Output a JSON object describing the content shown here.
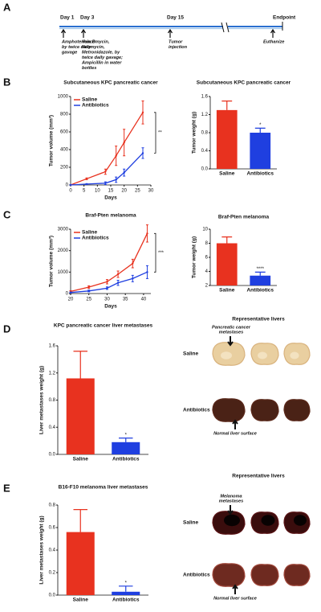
{
  "panel_labels": [
    "A",
    "B",
    "C",
    "D",
    "E"
  ],
  "timeline": {
    "events": [
      {
        "label": "Day 1",
        "note": [
          "Amphotericin B",
          "by twice daily",
          "gavage"
        ]
      },
      {
        "label": "Day 3",
        "note": [
          "Vancomycin,",
          "Neomycin,",
          "Metronidazole, by",
          "twice daily gavage;",
          "Ampicillin in water",
          "bottles"
        ]
      },
      {
        "label": "Day 15",
        "note": [
          "Tumor",
          "injection"
        ]
      },
      {
        "label": "Endpoint",
        "note": [
          "Euthanize"
        ]
      }
    ]
  },
  "chart_data": [
    {
      "type": "line",
      "title": "Subcutaneous KPC pancreatic cancer",
      "x_label": "Days",
      "y_label": "Tumor volume (mm³)",
      "x": [
        0,
        6,
        13,
        17,
        20,
        27
      ],
      "xlim": [
        0,
        30
      ],
      "xticks": [
        0,
        5,
        10,
        15,
        20,
        25,
        30
      ],
      "ylim": [
        0,
        1000
      ],
      "yticks": [
        0,
        200,
        400,
        600,
        800,
        1000
      ],
      "significance": "**",
      "series": [
        {
          "name": "Saline",
          "color": "#e8321f",
          "values": [
            0,
            70,
            150,
            330,
            480,
            820
          ],
          "errors": [
            0,
            10,
            30,
            110,
            150,
            130
          ]
        },
        {
          "name": "Antibiotics",
          "color": "#1f3fe0",
          "values": [
            0,
            10,
            20,
            60,
            140,
            360
          ],
          "errors": [
            0,
            5,
            15,
            30,
            40,
            60
          ]
        }
      ]
    },
    {
      "type": "bar",
      "title": "Subcutaneous KPC pancreatic cancer",
      "y_label": "Tumor weight (g)",
      "categories": [
        "Saline",
        "Antibiotics"
      ],
      "values": [
        1.3,
        0.8
      ],
      "errors": [
        0.2,
        0.1
      ],
      "colors": [
        "#e8321f",
        "#1f3fe0"
      ],
      "ylim": [
        0,
        1.6
      ],
      "yticks": [
        {
          "value": 0,
          "label": "0.0"
        },
        0.4,
        0.8,
        1.2,
        1.6
      ],
      "significance": "*"
    },
    {
      "type": "line",
      "title": "Braf-Pten melanoma",
      "x_label": "Days",
      "y_label": "Tumor volume (mm³)",
      "x": [
        20,
        25,
        30,
        33,
        37,
        41
      ],
      "xlim": [
        20,
        42
      ],
      "xticks": [
        20,
        25,
        30,
        35,
        40
      ],
      "ylim": [
        0,
        3000
      ],
      "yticks": [
        0,
        1000,
        2000,
        3000
      ],
      "significance": "***",
      "series": [
        {
          "name": "Saline",
          "color": "#e8321f",
          "values": [
            100,
            300,
            550,
            900,
            1400,
            2800
          ],
          "errors": [
            30,
            60,
            100,
            150,
            200,
            400
          ]
        },
        {
          "name": "Antibiotics",
          "color": "#1f3fe0",
          "values": [
            50,
            120,
            250,
            500,
            700,
            1000
          ],
          "errors": [
            20,
            40,
            60,
            120,
            150,
            300
          ]
        }
      ]
    },
    {
      "type": "bar",
      "title": "Braf-Pten melanoma",
      "y_label": "Tumor weight (g)",
      "categories": [
        "Saline",
        "Antibiotics"
      ],
      "values": [
        8.0,
        3.4
      ],
      "errors": [
        0.9,
        0.5
      ],
      "colors": [
        "#e8321f",
        "#1f3fe0"
      ],
      "ylim": [
        2,
        10
      ],
      "yticks": [
        2,
        4,
        6,
        8,
        10
      ],
      "significance": "****"
    },
    {
      "type": "bar",
      "title": "KPC pancreatic cancer liver metastases",
      "y_label": "Liver metastases weight (g)",
      "categories": [
        "Saline",
        "Antibiotics"
      ],
      "values": [
        1.12,
        0.18
      ],
      "errors": [
        0.4,
        0.06
      ],
      "colors": [
        "#e8321f",
        "#1f3fe0"
      ],
      "ylim": [
        0,
        1.6
      ],
      "yticks": [
        {
          "value": 0,
          "label": "0.0"
        },
        0.4,
        0.8,
        1.2,
        1.6
      ],
      "significance": "*"
    },
    {
      "type": "bar",
      "title": "B16-F10 melanoma liver metastases",
      "y_label": "Liver metastases weight (g)",
      "categories": [
        "Saline",
        "Antibiotics"
      ],
      "values": [
        0.56,
        0.03
      ],
      "errors": [
        0.2,
        0.05
      ],
      "colors": [
        "#e8321f",
        "#1f3fe0"
      ],
      "ylim": [
        0,
        0.8
      ],
      "yticks": [
        {
          "value": 0,
          "label": "0.0"
        },
        0.2,
        0.4,
        0.6,
        0.8
      ],
      "significance": "*"
    }
  ],
  "photos": [
    {
      "title": "Representative livers",
      "rows": [
        "Saline",
        "Antibiotics"
      ],
      "callouts": [
        [
          "Pancreatic cancer",
          "metastases"
        ],
        [
          "Normal liver surface"
        ]
      ]
    },
    {
      "title": "Representative livers",
      "rows": [
        "Saline",
        "Antibiotics"
      ],
      "callouts": [
        [
          "Melanoma",
          "metastases"
        ],
        [
          "Normal liver surface"
        ]
      ]
    }
  ]
}
